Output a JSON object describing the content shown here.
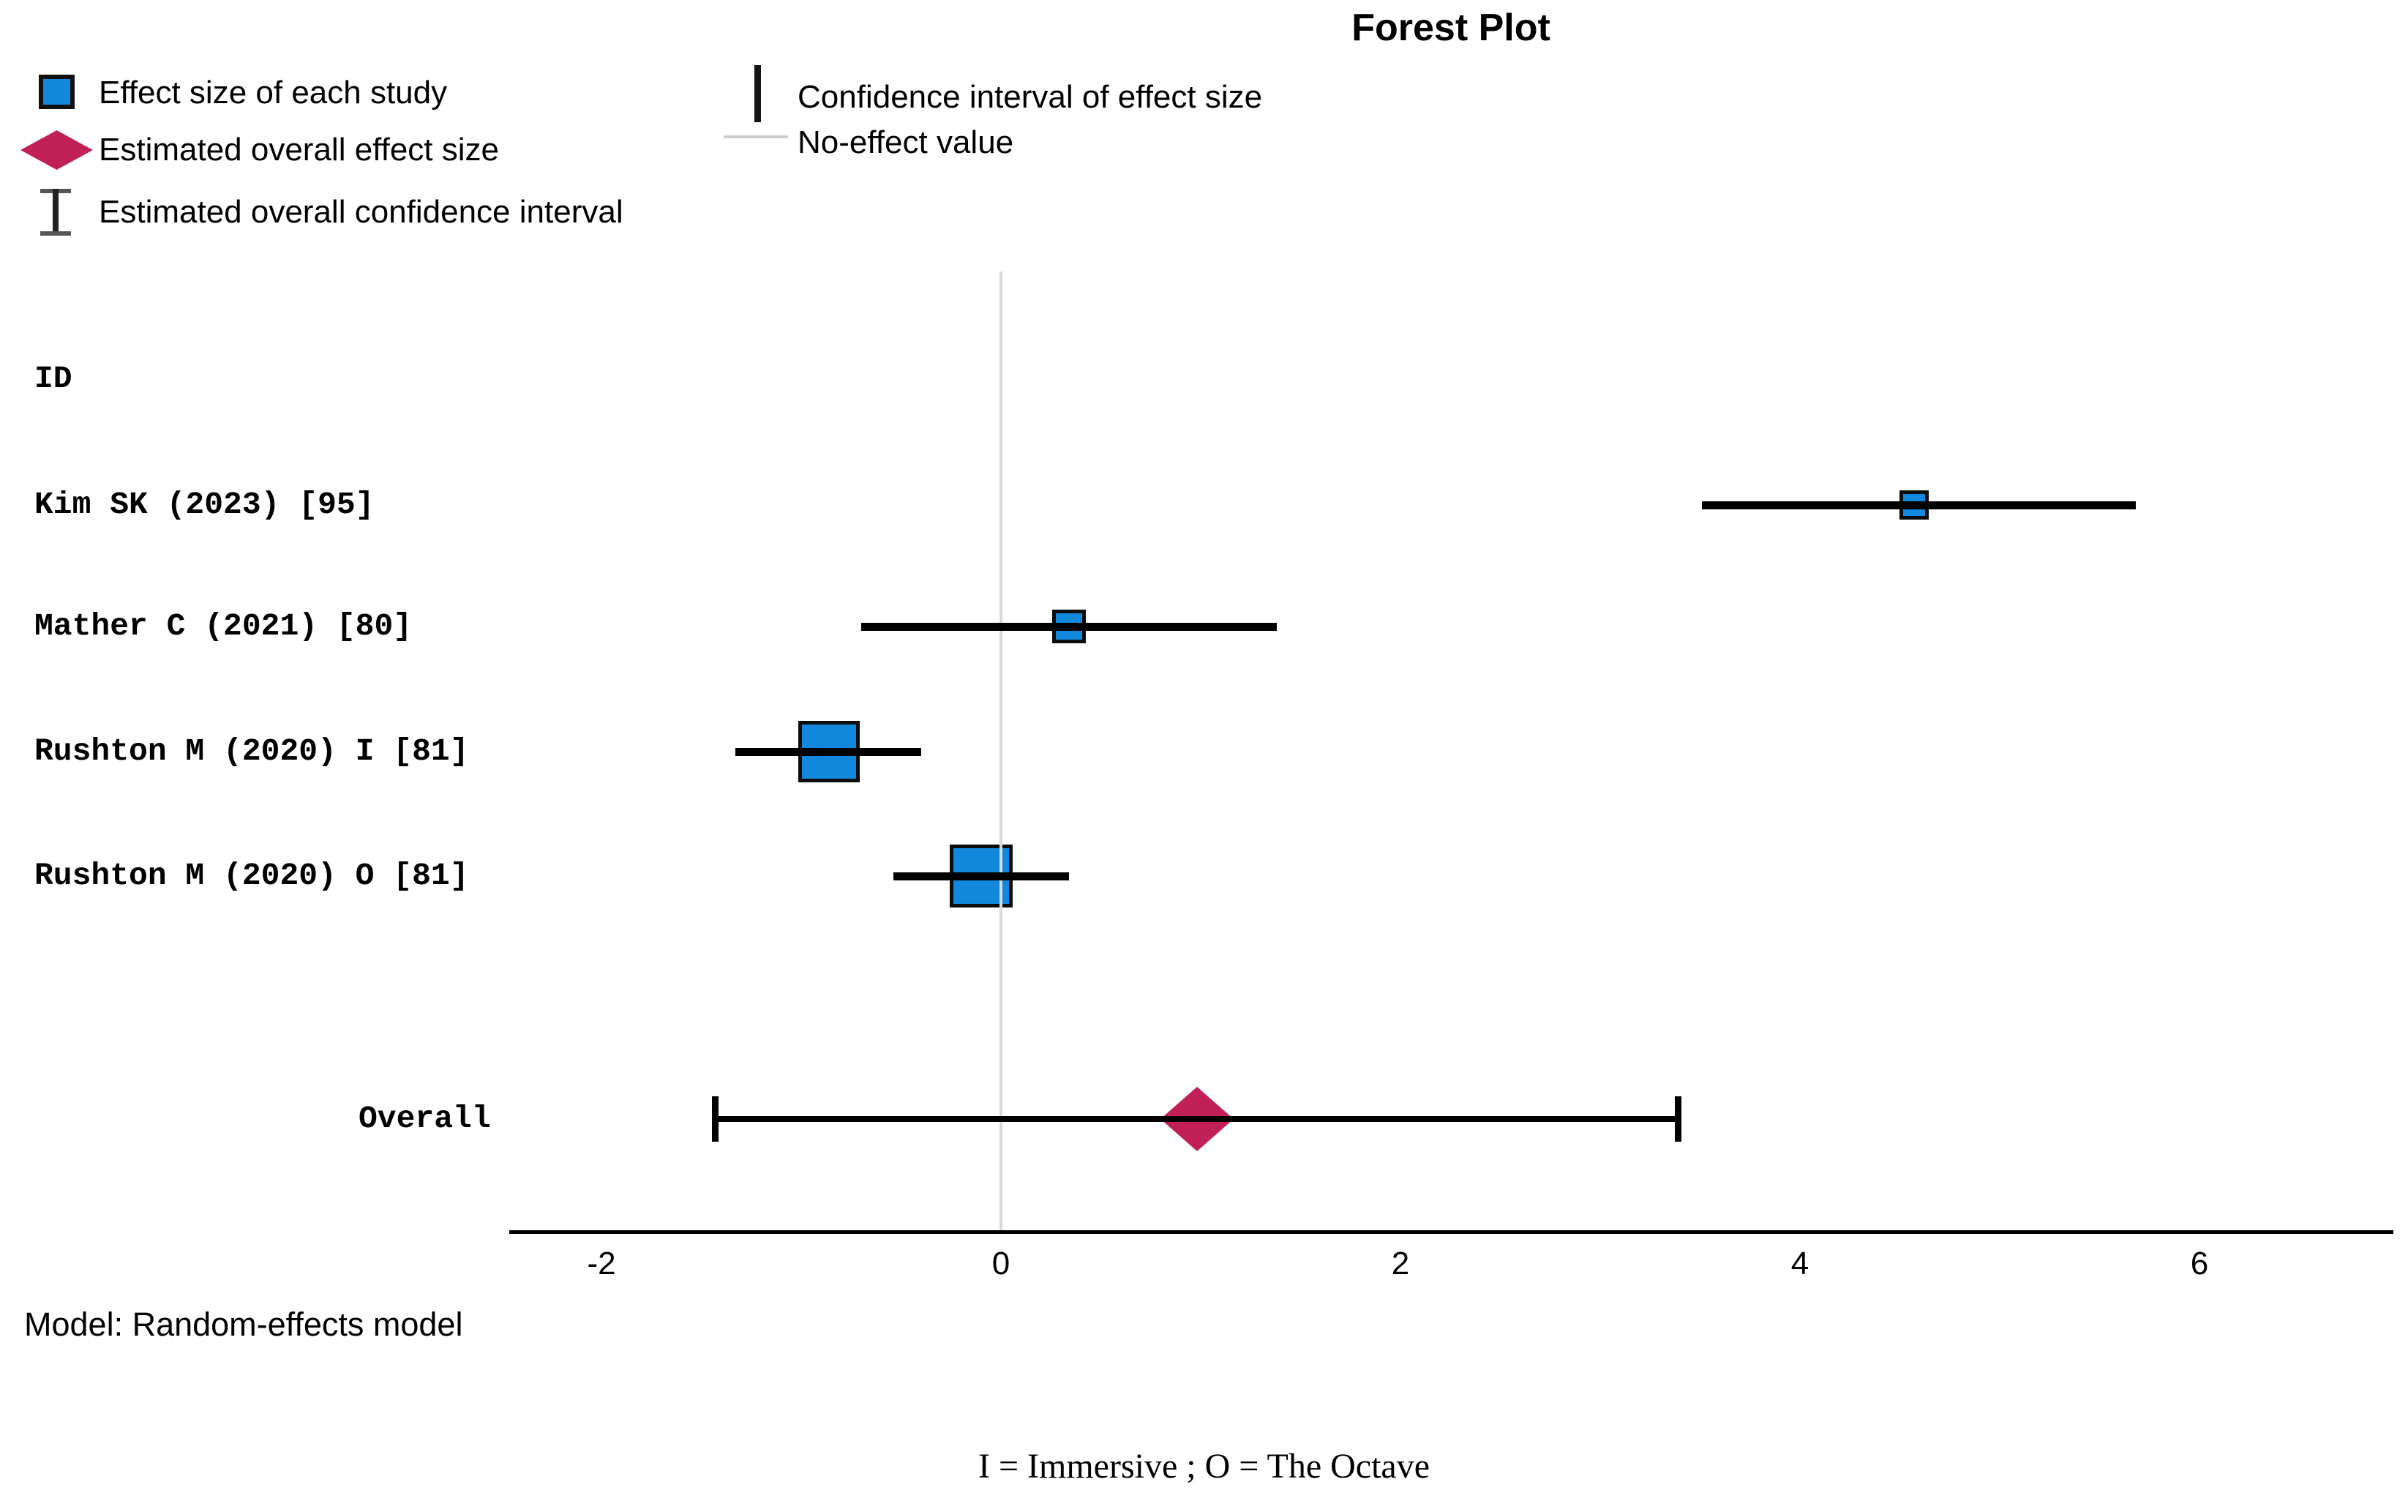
{
  "title": "Forest Plot",
  "column_header": "ID",
  "model_note": "Model: Random-effects model",
  "footnote": "I = Immersive ; O = The Octave",
  "legend": {
    "col1": [
      {
        "icon": "effect-size-square-icon",
        "label": "Effect size of each study"
      },
      {
        "icon": "overall-diamond-icon",
        "label": "Estimated overall effect size"
      },
      {
        "icon": "overall-ci-errorbar-icon",
        "label": "Estimated overall confidence interval"
      }
    ],
    "col2": [
      {
        "icon": "ci-vertical-line-icon",
        "label": "Confidence interval of effect size"
      },
      {
        "icon": "no-effect-line-icon",
        "label": "No-effect value"
      }
    ]
  },
  "colors": {
    "effect_square": "#1188DB",
    "effect_square_border": "#0d0d0d",
    "overall_diamond": "#C12057",
    "no_effect_line": "#d9d9d9",
    "axis": "#000000"
  },
  "chart_data": {
    "type": "forest",
    "title": "Forest Plot",
    "x_ticks": [
      -2,
      0,
      2,
      4,
      6
    ],
    "xlim": [
      -2.46,
      6.97
    ],
    "no_effect_value": 0,
    "grid": false,
    "studies": [
      {
        "id": "Kim SK (2023)  [95]",
        "effect": 4.57,
        "ci_low": 3.51,
        "ci_high": 5.68,
        "marker_size": 40
      },
      {
        "id": "Mather C (2021)  [80]",
        "effect": 0.34,
        "ci_low": -0.7,
        "ci_high": 1.38,
        "marker_size": 46
      },
      {
        "id": "Rushton M (2020) I [81]",
        "effect": -0.86,
        "ci_low": -1.33,
        "ci_high": -0.4,
        "marker_size": 84
      },
      {
        "id": "Rushton M (2020) O [81]",
        "effect": -0.1,
        "ci_low": -0.54,
        "ci_high": 0.34,
        "marker_size": 86
      }
    ],
    "overall": {
      "label": "Overall",
      "effect": 0.98,
      "ci_low": -1.43,
      "ci_high": 3.39
    }
  }
}
